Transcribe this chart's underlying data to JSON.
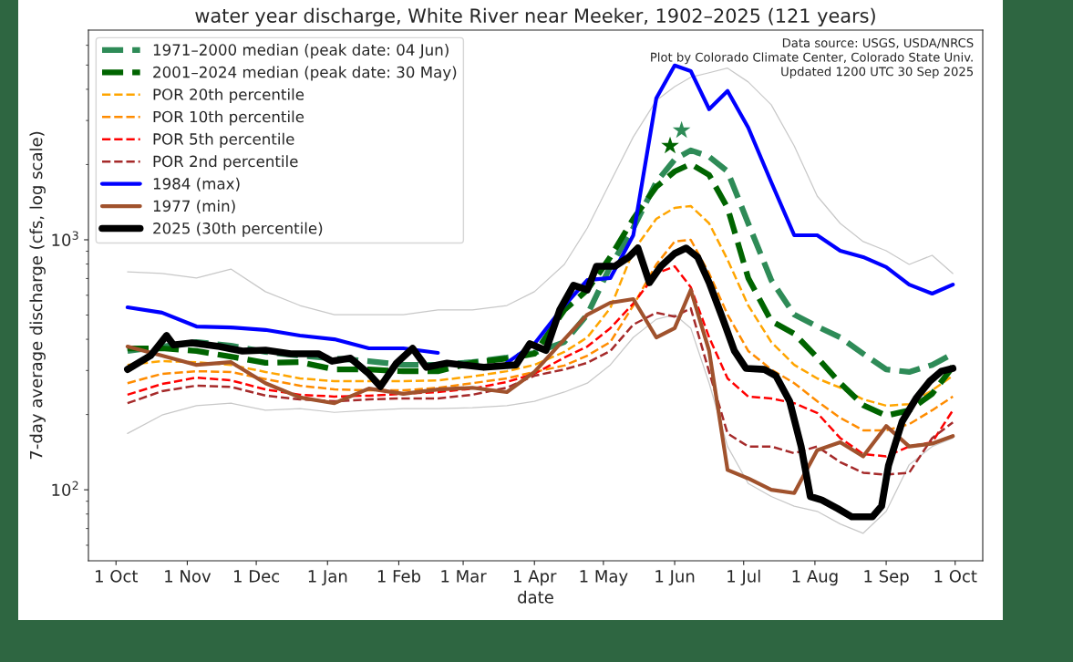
{
  "chart_data": {
    "type": "line",
    "title": "water year discharge, White River near Meeker, 1902–2025 (121 years)",
    "xlabel": "date",
    "ylabel": "7-day average discharge (cfs, log scale)",
    "annotations": [
      "Data source: USGS, USDA/NRCS",
      "Plot by Colorado Climate Center, Colorado State Univ.",
      "Updated 1200 UTC 30 Sep 2025"
    ],
    "log": "y",
    "grid": false,
    "legend": "top left",
    "xlim": [
      "2024-09-19",
      "2025-10-13"
    ],
    "ylim": [
      52,
      6900
    ],
    "xticks": [
      {
        "value": "2024-10-01",
        "label": "1 Oct"
      },
      {
        "value": "2024-11-01",
        "label": "1 Nov"
      },
      {
        "value": "2024-12-01",
        "label": "1 Dec"
      },
      {
        "value": "2025-01-01",
        "label": "1 Jan"
      },
      {
        "value": "2025-02-01",
        "label": "1 Feb"
      },
      {
        "value": "2025-03-01",
        "label": "1 Mar"
      },
      {
        "value": "2025-04-01",
        "label": "1 Apr"
      },
      {
        "value": "2025-05-01",
        "label": "1 May"
      },
      {
        "value": "2025-06-01",
        "label": "1 Jun"
      },
      {
        "value": "2025-07-01",
        "label": "1 Jul"
      },
      {
        "value": "2025-08-01",
        "label": "1 Aug"
      },
      {
        "value": "2025-09-01",
        "label": "1 Sep"
      },
      {
        "value": "2025-10-01",
        "label": "1 Oct"
      }
    ],
    "yticks": [
      {
        "value": 100,
        "label": "10$^{2}$"
      },
      {
        "value": 1000,
        "label": "10$^{3}$"
      }
    ],
    "x": [
      "2024-10-06",
      "2024-10-21",
      "2024-11-05",
      "2024-11-20",
      "2024-12-05",
      "2024-12-20",
      "2025-01-04",
      "2025-01-19",
      "2025-02-03",
      "2025-02-18",
      "2025-03-05",
      "2025-03-20",
      "2025-04-01",
      "2025-04-14",
      "2025-04-24",
      "2025-05-04",
      "2025-05-14",
      "2025-05-24",
      "2025-06-01",
      "2025-06-08",
      "2025-06-16",
      "2025-06-24",
      "2025-07-03",
      "2025-07-13",
      "2025-07-23",
      "2025-08-02",
      "2025-08-12",
      "2025-08-22",
      "2025-09-01",
      "2025-09-11",
      "2025-09-21",
      "2025-09-30"
    ],
    "series": [
      {
        "name": "1971–2000 median (peak date: 04 Jun)",
        "color": "#2e8b57",
        "line_style": "dashed",
        "values": [
          359,
          374,
          390,
          377,
          356,
          344,
          335,
          327,
          316,
          316,
          324,
          338,
          353,
          390,
          502,
          783,
          1115,
          1700,
          2095,
          2280,
          2150,
          1877,
          1163,
          690,
          502,
          450,
          407,
          350,
          303,
          296,
          316,
          350
        ]
      },
      {
        "name": "2001–2024 median (peak date: 30 May)",
        "color": "#006400",
        "line_style": "dashed",
        "values": [
          368,
          368,
          359,
          341,
          322,
          324,
          303,
          303,
          298,
          298,
          322,
          335,
          350,
          524,
          630,
          853,
          1213,
          1629,
          1877,
          2010,
          1816,
          1342,
          703,
          473,
          421,
          338,
          267,
          218,
          198,
          208,
          242,
          311
        ]
      },
      {
        "name": "POR 20th percentile",
        "color": "#ffa500",
        "line_style": "dashed",
        "values": [
          316,
          327,
          324,
          316,
          296,
          279,
          272,
          272,
          272,
          274,
          284,
          298,
          316,
          356,
          407,
          533,
          904,
          1213,
          1342,
          1365,
          1163,
          832,
          546,
          390,
          316,
          279,
          256,
          230,
          217,
          220,
          250,
          286
        ]
      },
      {
        "name": "POR 10th percentile",
        "color": "#ff8c00",
        "line_style": "dashed",
        "values": [
          267,
          291,
          298,
          296,
          277,
          261,
          252,
          250,
          250,
          256,
          267,
          279,
          296,
          314,
          344,
          390,
          546,
          797,
          984,
          1000,
          733,
          502,
          359,
          303,
          267,
          226,
          194,
          173,
          173,
          183,
          208,
          236
        ]
      },
      {
        "name": "POR 5th percentile",
        "color": "#ff0000",
        "line_style": "dashed",
        "values": [
          240,
          265,
          281,
          274,
          252,
          240,
          236,
          238,
          242,
          246,
          254,
          270,
          291,
          338,
          374,
          443,
          556,
          733,
          783,
          646,
          407,
          279,
          236,
          232,
          222,
          203,
          161,
          139,
          136,
          149,
          155,
          208
        ]
      },
      {
        "name": "POR 2nd percentile",
        "color": "#a52a2a",
        "line_style": "dashed",
        "values": [
          222,
          248,
          261,
          258,
          238,
          230,
          226,
          230,
          232,
          232,
          240,
          256,
          286,
          303,
          322,
          359,
          458,
          511,
          493,
          532,
          296,
          168,
          149,
          149,
          140,
          149,
          129,
          117,
          115,
          117,
          161,
          186
        ]
      },
      {
        "name": "1984 (max)",
        "color": "#0000ff",
        "line_style": "solid",
        "values": [
          537,
          511,
          450,
          446,
          436,
          414,
          400,
          368,
          368,
          353,
          null,
          322,
          384,
          546,
          690,
          703,
          1043,
          3680,
          4980,
          4730,
          3330,
          3940,
          2810,
          1700,
          1043,
          1043,
          904,
          853,
          778,
          662,
          609,
          662
        ]
      },
      {
        "name": "1977 (min)",
        "color": "#a0522d",
        "line_style": "solid",
        "values": [
          374,
          344,
          316,
          324,
          267,
          234,
          222,
          254,
          242,
          252,
          256,
          246,
          296,
          400,
          502,
          560,
          579,
          407,
          443,
          630,
          359,
          120,
          111,
          100,
          97,
          144,
          155,
          136,
          180,
          149,
          153,
          164
        ]
      },
      {
        "name": "2025 (30th percentile)",
        "color": "#000000",
        "line_style": "solid",
        "x": [
          "2024-10-06",
          "2024-10-16",
          "2024-10-23",
          "2024-10-26",
          "2024-11-03",
          "2024-11-15",
          "2024-11-25",
          "2024-12-05",
          "2024-12-16",
          "2024-12-28",
          "2025-01-03",
          "2025-01-11",
          "2025-01-19",
          "2025-01-24",
          "2025-01-31",
          "2025-02-07",
          "2025-02-13",
          "2025-02-22",
          "2025-03-10",
          "2025-03-24",
          "2025-03-30",
          "2025-04-06",
          "2025-04-12",
          "2025-04-18",
          "2025-04-24",
          "2025-04-28",
          "2025-05-06",
          "2025-05-12",
          "2025-05-16",
          "2025-05-21",
          "2025-05-26",
          "2025-06-01",
          "2025-06-06",
          "2025-06-11",
          "2025-06-16",
          "2025-06-22",
          "2025-06-27",
          "2025-07-02",
          "2025-07-10",
          "2025-07-15",
          "2025-07-21",
          "2025-07-26",
          "2025-07-30",
          "2025-08-04",
          "2025-08-11",
          "2025-08-17",
          "2025-08-26",
          "2025-08-30",
          "2025-09-02",
          "2025-09-08",
          "2025-09-14",
          "2025-09-20",
          "2025-09-25",
          "2025-09-30"
        ],
        "values": [
          303,
          344,
          414,
          380,
          387,
          374,
          359,
          362,
          350,
          350,
          327,
          336,
          291,
          259,
          321,
          368,
          309,
          321,
          309,
          316,
          384,
          361,
          524,
          657,
          630,
          784,
          784,
          852,
          927,
          674,
          784,
          882,
          927,
          852,
          674,
          481,
          359,
          306,
          303,
          286,
          226,
          149,
          94,
          91,
          84,
          78,
          78,
          86,
          125,
          188,
          232,
          272,
          298,
          306
        ]
      },
      {
        "color": "#c8c8c8",
        "line_style": "solid",
        "values": [
          745,
          733,
          703,
          764,
          620,
          546,
          502,
          502,
          502,
          524,
          524,
          546,
          620,
          797,
          1115,
          1700,
          2580,
          3610,
          4100,
          4470,
          4660,
          4860,
          4280,
          3470,
          2375,
          1496,
          1163,
          984,
          904,
          797,
          867,
          733
        ]
      },
      {
        "color": "#c8c8c8",
        "line_style": "solid",
        "values": [
          168,
          199,
          217,
          222,
          208,
          211,
          204,
          208,
          211,
          211,
          213,
          217,
          226,
          246,
          267,
          316,
          407,
          481,
          502,
          443,
          267,
          149,
          106,
          94,
          86,
          82,
          73,
          67,
          82,
          126,
          149,
          161
        ]
      },
      {
        "type": "scatter",
        "color": "#2e8b57",
        "marker": "star",
        "x": [
          "2025-06-04"
        ],
        "values": [
          2740
        ]
      },
      {
        "type": "scatter",
        "color": "#006400",
        "marker": "star",
        "x": [
          "2025-05-30"
        ],
        "values": [
          2375
        ]
      }
    ]
  }
}
